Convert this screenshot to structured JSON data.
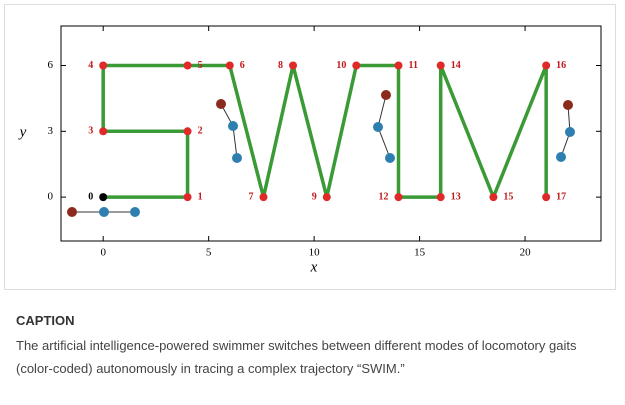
{
  "chart_data": {
    "type": "line",
    "xlabel": "x",
    "ylabel": "y",
    "xlim": [
      -2,
      23.6
    ],
    "ylim": [
      -2,
      7.8
    ],
    "xticks": [
      0,
      5,
      10,
      15,
      20
    ],
    "yticks": [
      0,
      3,
      6
    ],
    "series": [
      {
        "color": "#3a9a35",
        "x": [
          0,
          4,
          4,
          0,
          0,
          4,
          6,
          7.6,
          9,
          10.6,
          12,
          14,
          14,
          16,
          16,
          18.5,
          21,
          21
        ],
        "y": [
          0,
          0,
          3,
          3,
          6,
          6,
          6,
          0,
          6,
          0,
          6,
          6,
          0,
          0,
          6,
          0,
          6,
          0
        ]
      }
    ],
    "points": {
      "color": "#e02a2a",
      "labels": [
        "0",
        "1",
        "2",
        "3",
        "4",
        "5",
        "6",
        "7",
        "8",
        "9",
        "10",
        "11",
        "12",
        "13",
        "14",
        "15",
        "16",
        "17"
      ],
      "x": [
        0,
        4,
        4,
        0,
        0,
        4,
        6,
        7.6,
        9,
        10.6,
        12,
        14,
        14,
        16,
        16,
        18.5,
        21,
        21
      ],
      "y": [
        0,
        0,
        3,
        3,
        6,
        6,
        6,
        0,
        6,
        0,
        6,
        6,
        0,
        0,
        6,
        0,
        6,
        0
      ]
    }
  },
  "caption": {
    "heading": "CAPTION",
    "text": "The artificial intelligence-powered swimmer switches between different modes of locomotory gaits (color-coded) autonomously in tracing a complex trajectory “SWIM.”"
  }
}
